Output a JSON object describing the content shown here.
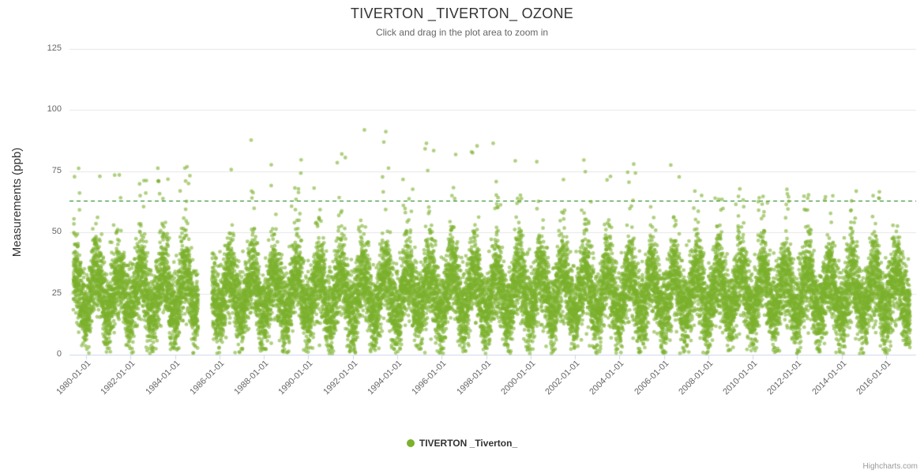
{
  "credits": "Highcharts.com",
  "chart_data": {
    "type": "scatter",
    "title": "TIVERTON _TIVERTON_ OZONE",
    "subtitle": "Click and drag in the plot area to zoom in",
    "xlabel": "",
    "ylabel": "Measurements (ppb)",
    "ylim": [
      0,
      125
    ],
    "yticks": [
      0,
      25,
      50,
      75,
      100,
      125
    ],
    "xlim_years": [
      1979.25,
      2017.35
    ],
    "grid": true,
    "legend_position": "bottom-center",
    "xticks": [
      {
        "year": 1980,
        "label": "1980-01-01"
      },
      {
        "year": 1982,
        "label": "1982-01-01"
      },
      {
        "year": 1984,
        "label": "1984-01-01"
      },
      {
        "year": 1986,
        "label": "1986-01-01"
      },
      {
        "year": 1988,
        "label": "1988-01-01"
      },
      {
        "year": 1990,
        "label": "1990-01-01"
      },
      {
        "year": 1992,
        "label": "1992-01-01"
      },
      {
        "year": 1994,
        "label": "1994-01-01"
      },
      {
        "year": 1996,
        "label": "1996-01-01"
      },
      {
        "year": 1998,
        "label": "1998-01-01"
      },
      {
        "year": 2000,
        "label": "2000-01-01"
      },
      {
        "year": 2002,
        "label": "2002-01-01"
      },
      {
        "year": 2004,
        "label": "2004-01-01"
      },
      {
        "year": 2006,
        "label": "2006-01-01"
      },
      {
        "year": 2008,
        "label": "2008-01-01"
      },
      {
        "year": 2010,
        "label": "2010-01-01"
      },
      {
        "year": 2012,
        "label": "2012-01-01"
      },
      {
        "year": 2014,
        "label": "2014-01-01"
      },
      {
        "year": 2016,
        "label": "2016-01-01"
      }
    ],
    "plot_lines": [
      {
        "value": 63,
        "color": "#0B7A0B",
        "style": "dashed"
      }
    ],
    "series": [
      {
        "name": "TIVERTON _Tiverton_",
        "color": "#7CB12D",
        "marker": "circle",
        "model": {
          "description": "daily ozone readings, strong annual cycle, summer maxima",
          "start": 1979.42,
          "end": 2017.08,
          "gap": [
            1985.04,
            1985.66
          ],
          "points_per_year": 500,
          "base_mean": 25,
          "seasonal_amplitude": 8.5,
          "season_phase": 0.22,
          "noise_sd": 8,
          "summer_tail_prob": 0.1,
          "spike_prob": 0.012,
          "peak_periods": [
            {
              "from": 1979.0,
              "to": 1986.0,
              "max": 78
            },
            {
              "from": 1986.0,
              "to": 1993.5,
              "max": 95
            },
            {
              "from": 1993.5,
              "to": 2003.5,
              "max": 88
            },
            {
              "from": 2003.5,
              "to": 2007.5,
              "max": 80
            },
            {
              "from": 2007.5,
              "to": 2017.4,
              "max": 68
            }
          ],
          "seed": 42
        }
      }
    ]
  }
}
